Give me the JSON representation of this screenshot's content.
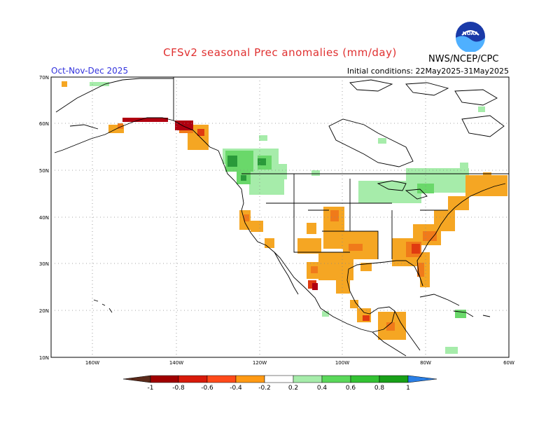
{
  "title": "CFSv2 seasonal Prec anomalies (mm/day)",
  "season": "Oct-Nov-Dec 2025",
  "initial_conditions": "Initial conditions: 22May2025-31May2025",
  "agency": "NWS/NCEP/CPC",
  "logo_text": "NOAA",
  "lat_labels": [
    "70N",
    "60N",
    "50N",
    "40N",
    "30N",
    "20N",
    "10N"
  ],
  "lon_labels": [
    "160W",
    "140W",
    "120W",
    "100W",
    "80W",
    "60W"
  ],
  "colorbar": {
    "ticks": [
      "-1",
      "-0.8",
      "-0.6",
      "-0.4",
      "-0.2",
      "0.2",
      "0.4",
      "0.6",
      "0.8",
      "1"
    ],
    "colors": [
      "#5b2a1a",
      "#a00000",
      "#d81a0a",
      "#ff4a1a",
      "#ff9a14",
      "#ffffff",
      "#a6ecaa",
      "#5ad85a",
      "#33c233",
      "#18a018",
      "#2a7fe6"
    ]
  },
  "colors": {
    "dry_light": "#f5a623",
    "dry_mid": "#f07a1a",
    "dry_strong": "#e03a10",
    "dry_severe": "#b00010",
    "wet_light": "#a6ecaa",
    "wet_mid": "#6ad86a",
    "wet_strong": "#2a9a3a"
  }
}
